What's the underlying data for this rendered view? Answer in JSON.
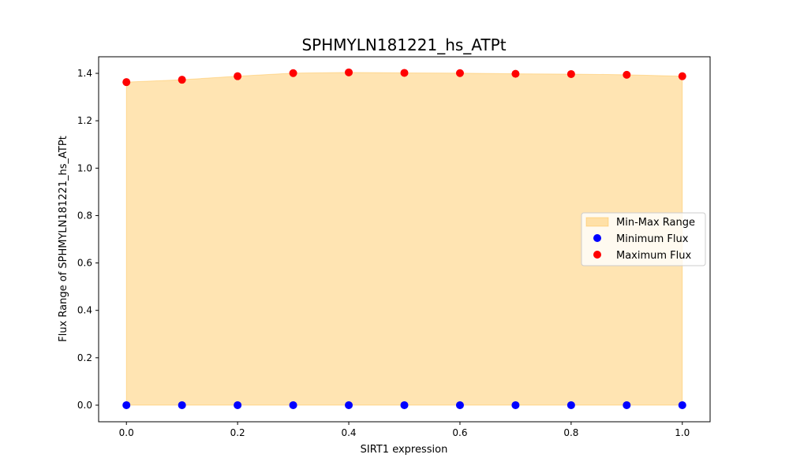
{
  "chart_data": {
    "type": "scatter",
    "title": "SPHMYLN181221_hs_ATPt",
    "xlabel": "SIRT1 expression",
    "ylabel": "Flux Range of SPHMYLN181221_hs_ATPt",
    "x": [
      0.0,
      0.1,
      0.2,
      0.3,
      0.4,
      0.5,
      0.6,
      0.7,
      0.8,
      0.9,
      1.0
    ],
    "series": [
      {
        "name": "Minimum Flux",
        "color": "#0000ff",
        "values": [
          0,
          0,
          0,
          0,
          0,
          0,
          0,
          0,
          0,
          0,
          0
        ]
      },
      {
        "name": "Maximum Flux",
        "color": "#ff0000",
        "values": [
          1.363,
          1.373,
          1.388,
          1.401,
          1.404,
          1.402,
          1.401,
          1.398,
          1.397,
          1.394,
          1.388
        ]
      }
    ],
    "fill": {
      "name": "Min-Max Range",
      "color": "#ffa500",
      "opacity": 0.3
    },
    "xlim": [
      -0.05,
      1.05
    ],
    "ylim": [
      -0.07,
      1.47
    ],
    "xticks": [
      "0.0",
      "0.2",
      "0.4",
      "0.6",
      "0.8",
      "1.0"
    ],
    "yticks": [
      "0.0",
      "0.2",
      "0.4",
      "0.6",
      "0.8",
      "1.0",
      "1.2",
      "1.4"
    ],
    "grid": false,
    "legend_position": "center-right"
  }
}
